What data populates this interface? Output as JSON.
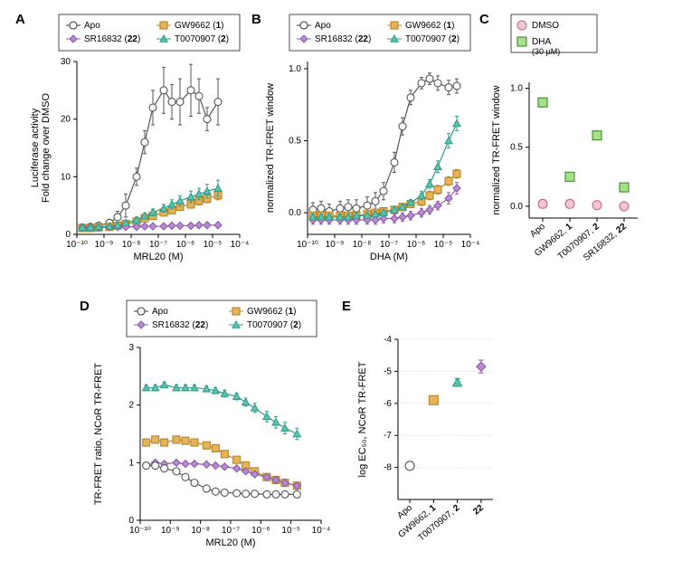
{
  "legend_common": {
    "items": [
      {
        "label": "Apo",
        "color": "#ffffff",
        "edge": "#3a3a3a",
        "shape": "circle"
      },
      {
        "label": "GW9662 (",
        "bold": "1",
        "tail": ")",
        "color": "#e5b45a",
        "edge": "#b78426",
        "shape": "square"
      },
      {
        "label": "SR16832 (",
        "bold": "22",
        "tail": ")",
        "color": "#b98bd0",
        "edge": "#8a5aad",
        "shape": "diamond"
      },
      {
        "label": "T0070907 (",
        "bold": "2",
        "tail": ")",
        "color": "#5fc3b0",
        "edge": "#2f9e8b",
        "shape": "triangle"
      }
    ]
  },
  "A": {
    "label": "A",
    "xlabel": "MRL20 (M)",
    "ylabel": "Luciferase activity\nFold change over DMSO",
    "ylim": [
      0,
      30
    ],
    "ytick": [
      0,
      10,
      20,
      30
    ],
    "xlog": [
      -10,
      -9,
      -8,
      -7,
      -6,
      -5,
      -4
    ],
    "xlabels": [
      "10⁻¹⁰",
      "10⁻⁹",
      "10⁻⁸",
      "10⁻⁷",
      "10⁻⁶",
      "10⁻⁵",
      "10⁻⁴"
    ],
    "series": [
      {
        "key": "Apo",
        "color": "#ffffff",
        "edge": "#555555",
        "shape": "circle",
        "x": [
          -9.8,
          -9.5,
          -9.2,
          -8.8,
          -8.5,
          -8.2,
          -7.8,
          -7.5,
          -7.2,
          -6.8,
          -6.5,
          -6.2,
          -5.8,
          -5.5,
          -5.2,
          -4.8
        ],
        "y": [
          1.2,
          1.3,
          1.5,
          2,
          3,
          5,
          10,
          16,
          22,
          25,
          23,
          23,
          25,
          24,
          20,
          23
        ],
        "err": [
          0.5,
          0.5,
          0.5,
          0.6,
          1,
          2,
          1.5,
          2,
          3,
          4,
          3,
          4,
          4.5,
          3,
          2,
          4
        ]
      },
      {
        "key": "GW9662",
        "color": "#e5b45a",
        "edge": "#b78426",
        "shape": "square",
        "x": [
          -9.8,
          -9.5,
          -9.2,
          -8.8,
          -8.5,
          -8.2,
          -7.8,
          -7.5,
          -7.2,
          -6.8,
          -6.5,
          -6.2,
          -5.8,
          -5.5,
          -5.2,
          -4.8
        ],
        "y": [
          1.1,
          1.1,
          1.2,
          1.3,
          1.5,
          1.8,
          2.2,
          2.8,
          3.2,
          3.8,
          4.2,
          4.8,
          5.2,
          5.8,
          6.2,
          6.8
        ],
        "err": [
          0.3,
          0.3,
          0.3,
          0.3,
          0.3,
          0.4,
          0.4,
          0.5,
          0.5,
          0.5,
          0.6,
          0.6,
          0.6,
          0.7,
          0.7,
          0.8
        ]
      },
      {
        "key": "SR16832",
        "color": "#b98bd0",
        "edge": "#8a5aad",
        "shape": "diamond",
        "x": [
          -9.8,
          -9.5,
          -9.2,
          -8.8,
          -8.5,
          -8.2,
          -7.8,
          -7.5,
          -7.2,
          -6.8,
          -6.5,
          -6.2,
          -5.8,
          -5.5,
          -5.2,
          -4.8
        ],
        "y": [
          1.2,
          1.2,
          1.2,
          1.3,
          1.3,
          1.3,
          1.3,
          1.4,
          1.4,
          1.4,
          1.5,
          1.5,
          1.5,
          1.6,
          1.6,
          1.6
        ],
        "err": [
          0.2,
          0.2,
          0.2,
          0.2,
          0.2,
          0.2,
          0.2,
          0.2,
          0.2,
          0.2,
          0.2,
          0.2,
          0.2,
          0.2,
          0.2,
          0.2
        ]
      },
      {
        "key": "T0070907",
        "color": "#5fc3b0",
        "edge": "#2f9e8b",
        "shape": "triangle",
        "x": [
          -9.8,
          -9.5,
          -9.2,
          -8.8,
          -8.5,
          -8.2,
          -7.8,
          -7.5,
          -7.2,
          -6.8,
          -6.5,
          -6.2,
          -5.8,
          -5.5,
          -5.2,
          -4.8
        ],
        "y": [
          1.2,
          1.2,
          1.3,
          1.4,
          1.6,
          2,
          2.5,
          3.2,
          3.8,
          4.5,
          5.2,
          5.8,
          6.5,
          7,
          7.5,
          8
        ],
        "err": [
          0.3,
          0.3,
          0.3,
          0.3,
          0.3,
          0.4,
          0.5,
          0.5,
          0.6,
          0.7,
          0.8,
          0.9,
          1,
          1,
          1.2,
          1.4
        ]
      }
    ]
  },
  "B": {
    "label": "B",
    "xlabel": "DHA (M)",
    "ylabel": "normalized TR-FRET window",
    "ylim": [
      -0.15,
      1.05
    ],
    "ytick": [
      0,
      0.5,
      1.0
    ],
    "yticklab": [
      "0.0",
      "0.5",
      "1.0"
    ],
    "xlog": [
      -10,
      -9,
      -8,
      -7,
      -6,
      -5,
      -4
    ],
    "xlabels": [
      "10⁻¹⁰",
      "10⁻⁹",
      "10⁻⁸",
      "10⁻⁷",
      "10⁻⁶",
      "10⁻⁵",
      "10⁻⁴"
    ],
    "series": [
      {
        "key": "Apo",
        "color": "#ffffff",
        "edge": "#555555",
        "shape": "circle",
        "x": [
          -9.8,
          -9.5,
          -9.2,
          -8.8,
          -8.5,
          -8.2,
          -7.8,
          -7.5,
          -7.2,
          -6.8,
          -6.5,
          -6.2,
          -5.8,
          -5.5,
          -5.2,
          -4.8,
          -4.5
        ],
        "y": [
          0.02,
          0.03,
          0.01,
          0.03,
          0.04,
          0.03,
          0.05,
          0.08,
          0.15,
          0.35,
          0.6,
          0.8,
          0.9,
          0.93,
          0.9,
          0.87,
          0.88
        ],
        "err": [
          0.05,
          0.05,
          0.05,
          0.05,
          0.05,
          0.06,
          0.06,
          0.06,
          0.06,
          0.07,
          0.06,
          0.05,
          0.04,
          0.04,
          0.05,
          0.05,
          0.05
        ]
      },
      {
        "key": "GW9662",
        "color": "#e5b45a",
        "edge": "#b78426",
        "shape": "square",
        "x": [
          -9.8,
          -9.5,
          -9.2,
          -8.8,
          -8.5,
          -8.2,
          -7.8,
          -7.5,
          -7.2,
          -6.8,
          -6.5,
          -6.2,
          -5.8,
          -5.5,
          -5.2,
          -4.8,
          -4.5
        ],
        "y": [
          -0.02,
          -0.02,
          -0.02,
          -0.02,
          -0.02,
          -0.02,
          -0.01,
          0,
          0.01,
          0.02,
          0.04,
          0.06,
          0.08,
          0.12,
          0.16,
          0.22,
          0.27
        ],
        "err": [
          0.02,
          0.02,
          0.02,
          0.02,
          0.02,
          0.02,
          0.02,
          0.02,
          0.02,
          0.02,
          0.02,
          0.02,
          0.03,
          0.03,
          0.03,
          0.03,
          0.03
        ]
      },
      {
        "key": "SR16832",
        "color": "#b98bd0",
        "edge": "#8a5aad",
        "shape": "diamond",
        "x": [
          -9.8,
          -9.5,
          -9.2,
          -8.8,
          -8.5,
          -8.2,
          -7.8,
          -7.5,
          -7.2,
          -6.8,
          -6.5,
          -6.2,
          -5.8,
          -5.5,
          -5.2,
          -4.8,
          -4.5
        ],
        "y": [
          -0.05,
          -0.05,
          -0.05,
          -0.05,
          -0.05,
          -0.05,
          -0.05,
          -0.05,
          -0.04,
          -0.04,
          -0.03,
          -0.02,
          0,
          0.02,
          0.05,
          0.1,
          0.17
        ],
        "err": [
          0.03,
          0.03,
          0.03,
          0.03,
          0.03,
          0.03,
          0.03,
          0.03,
          0.03,
          0.03,
          0.03,
          0.03,
          0.03,
          0.03,
          0.03,
          0.04,
          0.04
        ]
      },
      {
        "key": "T0070907",
        "color": "#5fc3b0",
        "edge": "#2f9e8b",
        "shape": "triangle",
        "x": [
          -9.8,
          -9.5,
          -9.2,
          -8.8,
          -8.5,
          -8.2,
          -7.8,
          -7.5,
          -7.2,
          -6.8,
          -6.5,
          -6.2,
          -5.8,
          -5.5,
          -5.2,
          -4.8,
          -4.5
        ],
        "y": [
          -0.03,
          -0.03,
          -0.03,
          -0.03,
          -0.03,
          -0.02,
          -0.02,
          -0.01,
          0,
          0.02,
          0.04,
          0.07,
          0.12,
          0.2,
          0.32,
          0.5,
          0.62
        ],
        "err": [
          0.02,
          0.02,
          0.02,
          0.02,
          0.02,
          0.02,
          0.02,
          0.02,
          0.02,
          0.02,
          0.02,
          0.02,
          0.03,
          0.03,
          0.04,
          0.05,
          0.05
        ]
      }
    ]
  },
  "C": {
    "label": "C",
    "ylabel": "normalized TR-FRET window",
    "ylim": [
      -0.1,
      1.05
    ],
    "ytick": [
      0,
      0.5,
      1.0
    ],
    "yticklab": [
      "0.0",
      "0.5",
      "1.0"
    ],
    "categories": [
      "Apo",
      "GW9662, 1",
      "T0070907, 2",
      "SR16832, 22"
    ],
    "cat_bold": [
      "",
      "1",
      "2",
      "22"
    ],
    "legend": [
      {
        "label": "DMSO",
        "color": "#f2c7d4",
        "edge": "#c76a94",
        "shape": "circle"
      },
      {
        "label": "DHA",
        "sub": "(30 µM)",
        "color": "#a7e08a",
        "edge": "#3f8a2f",
        "shape": "square"
      }
    ],
    "data": [
      {
        "cat": 0,
        "dmso": {
          "y": 0.02,
          "e": 0.02
        },
        "dha": {
          "y": 0.88,
          "e": 0.02
        }
      },
      {
        "cat": 1,
        "dmso": {
          "y": 0.02,
          "e": 0.02
        },
        "dha": {
          "y": 0.25,
          "e": 0.03
        }
      },
      {
        "cat": 2,
        "dmso": {
          "y": 0.01,
          "e": 0.02
        },
        "dha": {
          "y": 0.6,
          "e": 0.03
        }
      },
      {
        "cat": 3,
        "dmso": {
          "y": 0.0,
          "e": 0.02
        },
        "dha": {
          "y": 0.16,
          "e": 0.03
        }
      }
    ]
  },
  "D": {
    "label": "D",
    "xlabel": "MRL20 (M)",
    "ylabel": "TR-FRET ratio, NCoR TR-FRET",
    "ylim": [
      0,
      3
    ],
    "ytick": [
      0,
      1,
      2,
      3
    ],
    "xlog": [
      -10,
      -9,
      -8,
      -7,
      -6,
      -5,
      -4
    ],
    "xlabels": [
      "10⁻¹⁰",
      "10⁻⁹",
      "10⁻⁸",
      "10⁻⁷",
      "10⁻⁶",
      "10⁻⁵",
      "10⁻⁴"
    ],
    "series": [
      {
        "key": "T0070907",
        "color": "#5fc3b0",
        "edge": "#2f9e8b",
        "shape": "triangle",
        "x": [
          -9.8,
          -9.5,
          -9.2,
          -8.8,
          -8.5,
          -8.2,
          -7.8,
          -7.5,
          -7.2,
          -6.8,
          -6.5,
          -6.2,
          -5.8,
          -5.5,
          -5.2,
          -4.8
        ],
        "y": [
          2.3,
          2.3,
          2.35,
          2.3,
          2.3,
          2.3,
          2.28,
          2.25,
          2.2,
          2.15,
          2.05,
          1.95,
          1.8,
          1.7,
          1.6,
          1.5
        ],
        "err": [
          0.05,
          0.05,
          0.05,
          0.05,
          0.05,
          0.05,
          0.05,
          0.05,
          0.06,
          0.06,
          0.07,
          0.08,
          0.09,
          0.1,
          0.1,
          0.1
        ]
      },
      {
        "key": "GW9662",
        "color": "#e5b45a",
        "edge": "#b78426",
        "shape": "square",
        "x": [
          -9.8,
          -9.5,
          -9.2,
          -8.8,
          -8.5,
          -8.2,
          -7.8,
          -7.5,
          -7.2,
          -6.8,
          -6.5,
          -6.2,
          -5.8,
          -5.5,
          -5.2,
          -4.8
        ],
        "y": [
          1.35,
          1.4,
          1.35,
          1.4,
          1.38,
          1.35,
          1.3,
          1.25,
          1.15,
          1.05,
          0.95,
          0.85,
          0.75,
          0.7,
          0.65,
          0.6
        ],
        "err": [
          0.05,
          0.06,
          0.05,
          0.05,
          0.05,
          0.05,
          0.05,
          0.05,
          0.05,
          0.05,
          0.05,
          0.05,
          0.05,
          0.05,
          0.05,
          0.05
        ]
      },
      {
        "key": "SR16832",
        "color": "#b98bd0",
        "edge": "#8a5aad",
        "shape": "diamond",
        "x": [
          -9.8,
          -9.5,
          -9.2,
          -8.8,
          -8.5,
          -8.2,
          -7.8,
          -7.5,
          -7.2,
          -6.8,
          -6.5,
          -6.2,
          -5.8,
          -5.5,
          -5.2,
          -4.8
        ],
        "y": [
          0.95,
          1.0,
          0.98,
          1.0,
          0.98,
          0.98,
          0.97,
          0.95,
          0.93,
          0.9,
          0.85,
          0.8,
          0.75,
          0.7,
          0.65,
          0.6
        ],
        "err": [
          0.03,
          0.03,
          0.03,
          0.03,
          0.03,
          0.03,
          0.03,
          0.03,
          0.03,
          0.03,
          0.03,
          0.04,
          0.04,
          0.04,
          0.04,
          0.04
        ]
      },
      {
        "key": "Apo",
        "color": "#ffffff",
        "edge": "#555555",
        "shape": "circle",
        "x": [
          -9.8,
          -9.5,
          -9.2,
          -8.8,
          -8.5,
          -8.2,
          -7.8,
          -7.5,
          -7.2,
          -6.8,
          -6.5,
          -6.2,
          -5.8,
          -5.5,
          -5.2,
          -4.8
        ],
        "y": [
          0.95,
          0.95,
          0.9,
          0.85,
          0.75,
          0.65,
          0.55,
          0.5,
          0.48,
          0.47,
          0.46,
          0.46,
          0.45,
          0.45,
          0.45,
          0.45
        ],
        "err": [
          0.02,
          0.02,
          0.02,
          0.02,
          0.02,
          0.02,
          0.02,
          0.02,
          0.02,
          0.02,
          0.02,
          0.02,
          0.02,
          0.02,
          0.02,
          0.02
        ]
      }
    ]
  },
  "E": {
    "label": "E",
    "ylabel": "log EC₅₀, NCoR TR-FRET",
    "ylim": [
      -9,
      -4
    ],
    "ytick": [
      -8,
      -7,
      -6,
      -5,
      -4
    ],
    "categories": [
      "Apo",
      "GW9662, 1",
      "T0070907, 2",
      "22"
    ],
    "cat_bold": [
      "",
      "1",
      "2",
      "22"
    ],
    "data": [
      {
        "y": -7.95,
        "e": 0.12,
        "color": "#ffffff",
        "edge": "#555555",
        "shape": "circle"
      },
      {
        "y": -5.9,
        "e": 0.12,
        "color": "#e5b45a",
        "edge": "#b78426",
        "shape": "square"
      },
      {
        "y": -5.35,
        "e": 0.12,
        "color": "#5fc3b0",
        "edge": "#2f9e8b",
        "shape": "triangle"
      },
      {
        "y": -4.85,
        "e": 0.2,
        "color": "#b98bd0",
        "edge": "#8a5aad",
        "shape": "diamond"
      }
    ]
  }
}
